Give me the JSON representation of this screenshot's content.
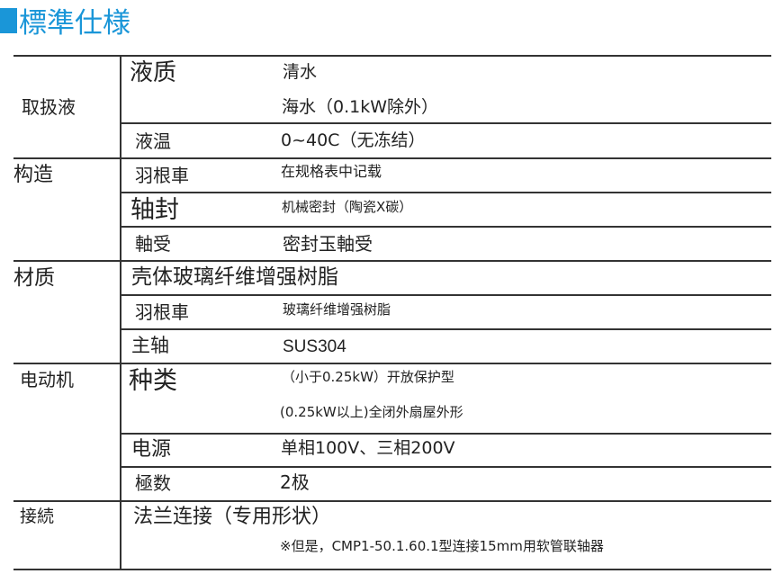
{
  "title": "標準仕様",
  "accent_color": "#1a96d8",
  "rows": {
    "handling_liquid": {
      "category": "取扱液",
      "liquid_label": "液质",
      "liquid_value_1": "清水",
      "liquid_value_2": "海水（0.1kW除外）",
      "temp_label": "液温",
      "temp_value": "0~40C（无冻结）"
    },
    "structure": {
      "category": "构造",
      "impeller_label": "羽根車",
      "impeller_value": "在规格表中记载",
      "seal_label": "轴封",
      "seal_value": "机械密封（陶瓷X碳）",
      "bearing_label": "軸受",
      "bearing_value": "密封玉軸受"
    },
    "material": {
      "category": "材质",
      "casing_value": "壳体玻璃纤维增强树脂",
      "impeller_label": "羽根車",
      "impeller_value": "玻璃纤维增强树脂",
      "shaft_label": "主轴",
      "shaft_value": "SUS304"
    },
    "motor": {
      "category": "电动机",
      "type_label": "种类",
      "type_value_1": "（小于0.25kW）开放保护型",
      "type_value_2": "(0.25kW以上)全闭外扇屋外形",
      "power_label": "电源",
      "power_value": "单相100V、三相200V",
      "poles_label": "極数",
      "poles_value": "2极"
    },
    "connection": {
      "category": "接続",
      "value": "法兰连接（专用形状）",
      "note": "※但是，CMP1-50.1.60.1型连接15mm用软管联轴器"
    }
  }
}
